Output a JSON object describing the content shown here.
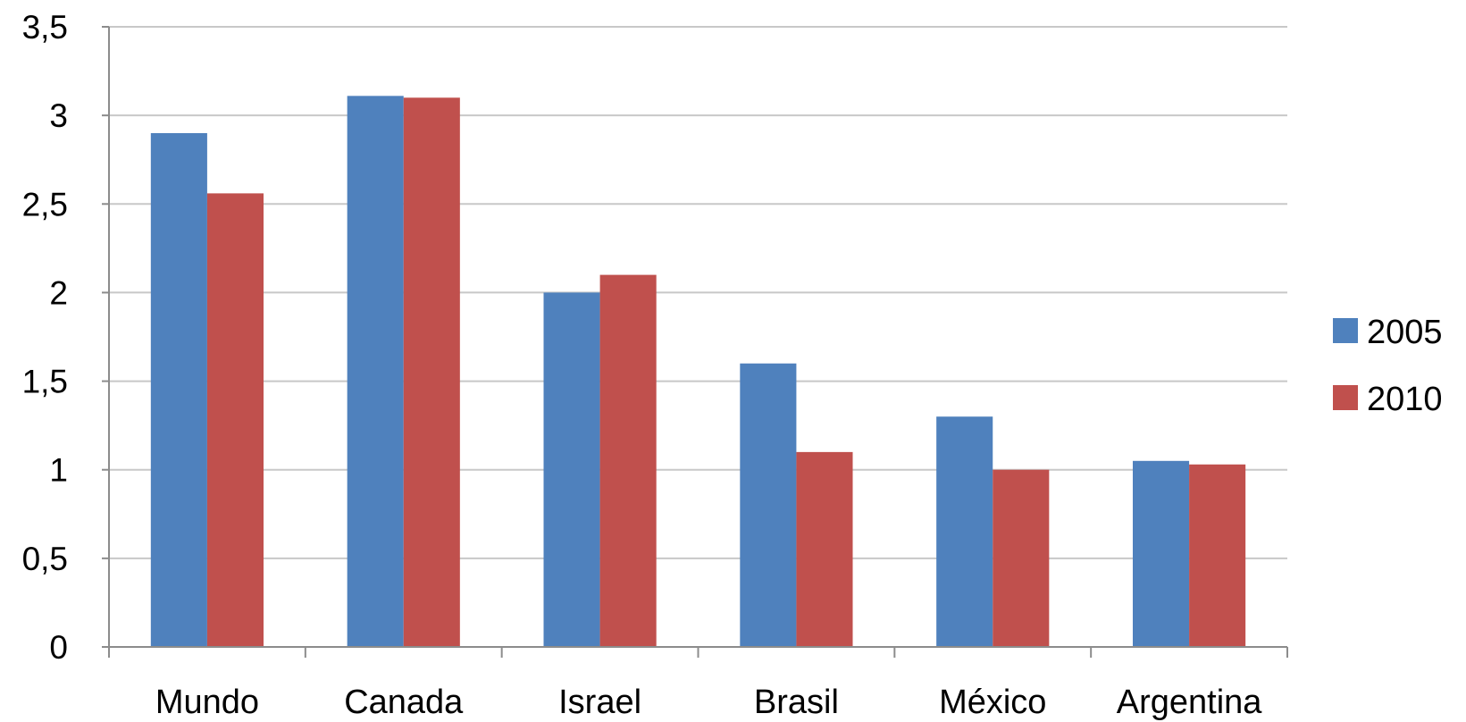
{
  "chart_data": {
    "type": "bar",
    "categories": [
      "Mundo",
      "Canada",
      "Israel",
      "Brasil",
      "México",
      "Argentina"
    ],
    "series": [
      {
        "name": "2005",
        "color": "#4F81BD",
        "values": [
          2.9,
          3.11,
          2.0,
          1.6,
          1.3,
          1.05
        ]
      },
      {
        "name": "2010",
        "color": "#C0504D",
        "values": [
          2.56,
          3.1,
          2.1,
          1.1,
          1.0,
          1.03
        ]
      }
    ],
    "y_ticks": [
      "0",
      "0,5",
      "1",
      "1,5",
      "2",
      "2,5",
      "3",
      "3,5"
    ],
    "ylim": [
      0,
      3.5
    ],
    "grid": true,
    "legend_position": "right",
    "title": "",
    "xlabel": "",
    "ylabel": ""
  }
}
